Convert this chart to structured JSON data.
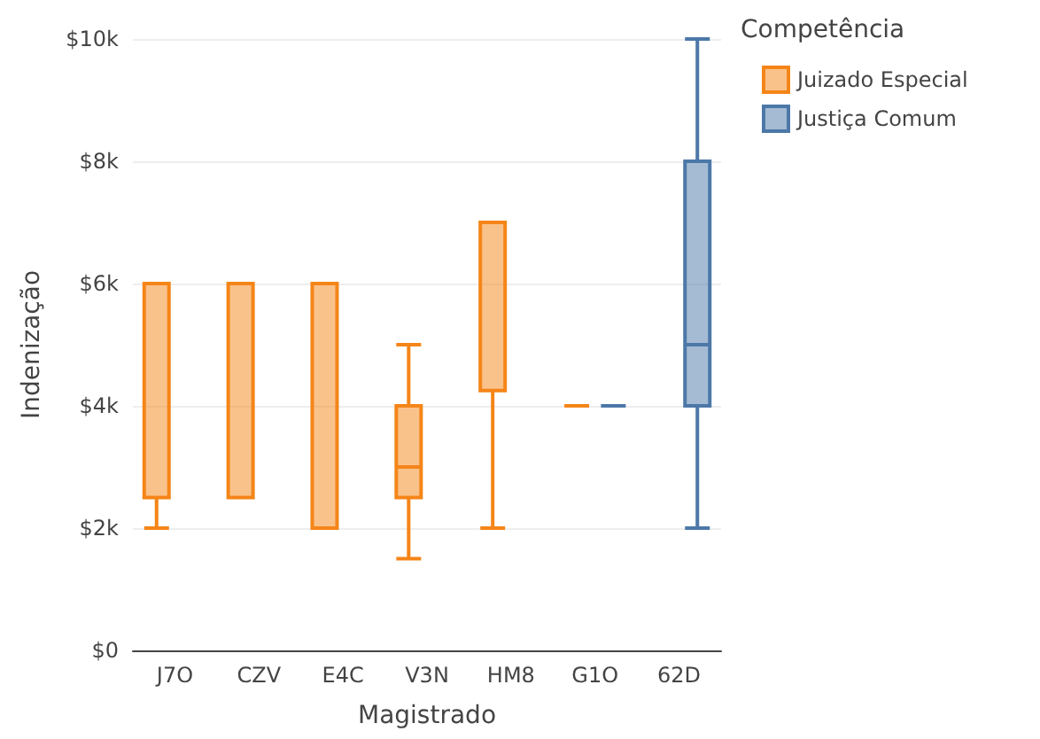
{
  "chart_data": {
    "type": "box",
    "xlabel": "Magistrado",
    "ylabel": "Indenização",
    "legend_title": "Competência",
    "categories": [
      "J7O",
      "CZV",
      "E4C",
      "V3N",
      "HM8",
      "G1O",
      "62D"
    ],
    "series": [
      {
        "name": "Juizado Especial",
        "color": "#f58518",
        "boxes": [
          {
            "low": 2000,
            "q1": 2500,
            "median": 6000,
            "q3": 6000,
            "high": 6000
          },
          {
            "low": 2500,
            "q1": 2500,
            "median": 6000,
            "q3": 6000,
            "high": 6000
          },
          {
            "low": 2000,
            "q1": 2000,
            "median": 6000,
            "q3": 6000,
            "high": 6000
          },
          {
            "low": 1500,
            "q1": 2500,
            "median": 3000,
            "q3": 4000,
            "high": 5000
          },
          {
            "low": 2000,
            "q1": 4250,
            "median": 7000,
            "q3": 7000,
            "high": 7000
          },
          {
            "low": 4000,
            "q1": 4000,
            "median": 4000,
            "q3": 4000,
            "high": 4000
          },
          null
        ]
      },
      {
        "name": "Justiça Comum",
        "color": "#4c78a8",
        "boxes": [
          null,
          null,
          null,
          null,
          null,
          {
            "low": 4000,
            "q1": 4000,
            "median": 4000,
            "q3": 4000,
            "high": 4000
          },
          {
            "low": 2000,
            "q1": 4000,
            "median": 5000,
            "q3": 8000,
            "high": 10000
          }
        ]
      }
    ],
    "ylim": [
      0,
      10000
    ],
    "yticks": [
      {
        "value": 0,
        "label": "$0"
      },
      {
        "value": 2000,
        "label": "$2k"
      },
      {
        "value": 4000,
        "label": "$4k"
      },
      {
        "value": 6000,
        "label": "$6k"
      },
      {
        "value": 8000,
        "label": "$8k"
      },
      {
        "value": 10000,
        "label": "$10k"
      }
    ],
    "grid": "y",
    "legend": "top right"
  }
}
